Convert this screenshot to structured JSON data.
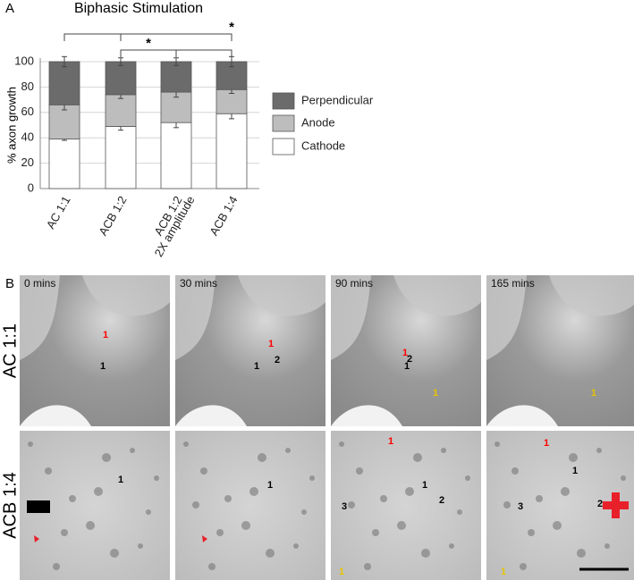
{
  "panel_labels": [
    "A",
    "B"
  ],
  "chart_data": {
    "type": "stacked_bar",
    "title": "Biphasic Stimulation",
    "y_label": "% axon growth",
    "categories": [
      "AC 1:1",
      "ACB 1:2",
      "ACB 1:2",
      "ACB 1:4"
    ],
    "category_sublabels": [
      null,
      null,
      "2X amplitude",
      null
    ],
    "series": [
      {
        "name": "Cathode",
        "color": "#ffffff",
        "values": [
          39,
          49,
          52,
          59
        ],
        "errors": [
          1,
          3,
          4,
          4
        ]
      },
      {
        "name": "Anode",
        "color": "#bdbdbd",
        "values": [
          27,
          25,
          24,
          19
        ],
        "errors": [
          4,
          3,
          4,
          3
        ]
      },
      {
        "name": "Perpendicular",
        "color": "#6b6b6b",
        "values": [
          34,
          26,
          24,
          22
        ],
        "errors": [
          4,
          3,
          3,
          4
        ]
      }
    ],
    "ylim": [
      0,
      100
    ],
    "yticks": [
      0,
      20,
      40,
      60,
      80,
      100
    ],
    "grid": true,
    "significance": [
      {
        "from": 0,
        "to": 3,
        "label": "*"
      },
      {
        "from": 1,
        "to": 3,
        "label": "*"
      }
    ]
  },
  "micrographs": {
    "time_labels": [
      "0 mins",
      "30 mins",
      "90 mins",
      "165 mins"
    ],
    "row_labels": [
      "AC 1:1",
      "ACB 1:4"
    ],
    "annotations": [
      {
        "label": "1",
        "color": "red"
      },
      {
        "label": "1",
        "color": "black"
      },
      {
        "label": "1",
        "color": "red"
      },
      {
        "label": "1",
        "color": "black"
      },
      {
        "label": "2",
        "color": "black"
      },
      {
        "label": "1",
        "color": "red"
      },
      {
        "label": "1",
        "color": "black"
      },
      {
        "label": "2",
        "color": "black"
      },
      {
        "label": "1",
        "color": "#e8c400"
      },
      {
        "label": "1",
        "color": "#e8c400"
      },
      {
        "label": "1",
        "color": "black"
      },
      {
        "label": "1",
        "color": "black"
      },
      {
        "label": "1",
        "color": "red"
      },
      {
        "label": "3",
        "color": "black"
      },
      {
        "label": "1",
        "color": "black"
      },
      {
        "label": "2",
        "color": "black"
      },
      {
        "label": "1",
        "color": "#e8c400"
      },
      {
        "label": "1",
        "color": "red"
      },
      {
        "label": "3",
        "color": "black"
      },
      {
        "label": "1",
        "color": "black"
      },
      {
        "label": "2",
        "color": "black"
      },
      {
        "label": "1",
        "color": "#e8c400"
      }
    ]
  }
}
